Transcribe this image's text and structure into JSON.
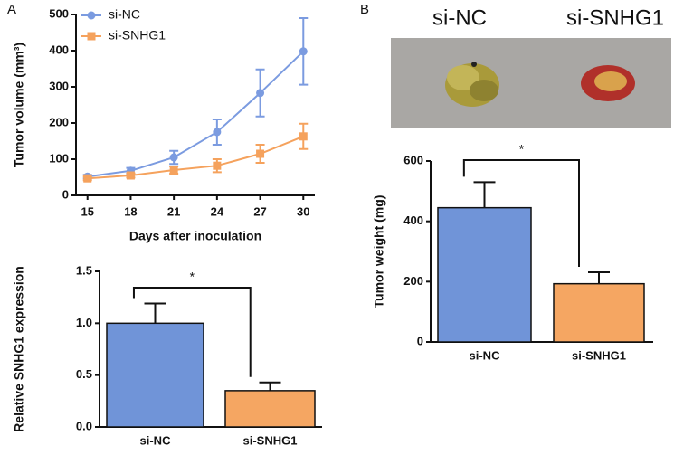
{
  "panels": [
    "A",
    "B"
  ],
  "photo_labels": [
    "si-NC",
    "si-SNHG1"
  ],
  "chart_data": [
    {
      "type": "line",
      "x_label": "Days after inoculation",
      "y_label": "Tumor volume (mm³)",
      "x": [
        15,
        18,
        21,
        24,
        27,
        30
      ],
      "xlim": [
        14.2,
        30.8
      ],
      "xticks": [
        15,
        18,
        21,
        24,
        27,
        30
      ],
      "ylim": [
        0,
        500
      ],
      "yticks": [
        0,
        100,
        200,
        300,
        400,
        500
      ],
      "legend": "upper left",
      "series": [
        {
          "name": "si-NC",
          "color": "#7b9be0",
          "values": [
            52,
            68,
            105,
            175,
            283,
            398
          ],
          "errors": [
            5,
            8,
            18,
            35,
            65,
            92
          ]
        },
        {
          "name": "si-SNHG1",
          "color": "#f5a25d",
          "values": [
            47,
            55,
            70,
            82,
            115,
            163
          ],
          "errors": [
            5,
            6,
            10,
            18,
            25,
            35
          ]
        }
      ]
    },
    {
      "type": "bar",
      "y_label": "Relative SNHG1 expression",
      "categories": [
        "si-NC",
        "si-SNHG1"
      ],
      "values": [
        1.0,
        0.35
      ],
      "errors": [
        0.19,
        0.08
      ],
      "colors": [
        "#7094d8",
        "#f5a662"
      ],
      "ylim": [
        0,
        1.5
      ],
      "yticks": [
        {
          "value": 0,
          "label": "0.0"
        },
        0.5,
        {
          "value": 1,
          "label": "1.0"
        },
        1.5
      ],
      "annotation": "*"
    },
    {
      "type": "bar",
      "y_label": "Tumor weight (mg)",
      "categories": [
        "si-NC",
        "si-SNHG1"
      ],
      "values": [
        445,
        193
      ],
      "errors": [
        85,
        38
      ],
      "colors": [
        "#7094d8",
        "#f5a662"
      ],
      "ylim": [
        0,
        600
      ],
      "yticks": [
        0,
        200,
        400,
        600
      ],
      "annotation": "*"
    }
  ]
}
